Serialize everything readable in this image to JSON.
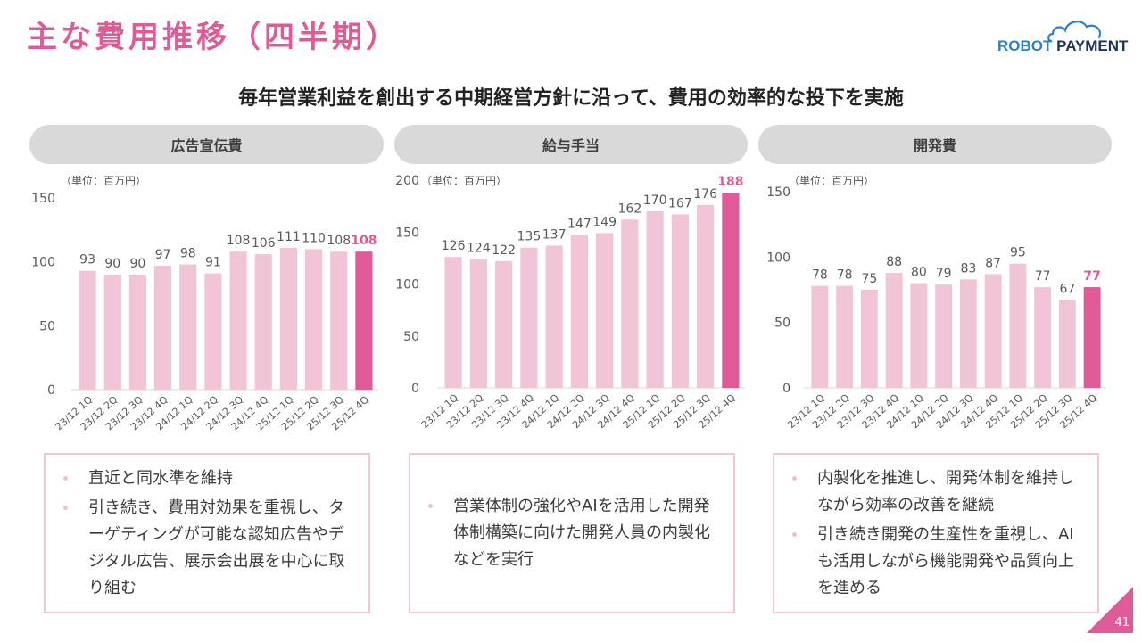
{
  "header": {
    "title": "主な費用推移（四半期）",
    "subtitle": "毎年営業利益を創出する中期経営方針に沿って、費用の効率的な投下を実施"
  },
  "logo": {
    "brand_part1": "ROBOT",
    "brand_part2": "PAYMENT",
    "icon": "cloud-icon"
  },
  "colors": {
    "accent": "#df5a97",
    "bar": "#f2c4d8",
    "bar_highlight": "#df5a97",
    "pill_bg": "#d9d9d9",
    "note_border": "#f0c6d8",
    "logo_blue": "#2d80c3",
    "logo_navy": "#1d3557"
  },
  "chart_data": [
    {
      "type": "bar",
      "title": "広告宣伝費",
      "unit_label": "（単位：百万円）",
      "categories": [
        "23/12 1Q",
        "23/12 2Q",
        "23/12 3Q",
        "23/12 4Q",
        "24/12 1Q",
        "24/12 2Q",
        "24/12 3Q",
        "24/12 4Q",
        "25/12 1Q",
        "25/12 2Q",
        "25/12 3Q",
        "25/12 4Q"
      ],
      "values": [
        93,
        90,
        90,
        97,
        98,
        91,
        108,
        106,
        111,
        110,
        108,
        108
      ],
      "highlight_index": 11,
      "ylim": [
        0,
        150
      ],
      "yticks": [
        0,
        50,
        100,
        150
      ],
      "xlabel": "",
      "ylabel": "",
      "grid": false
    },
    {
      "type": "bar",
      "title": "給与手当",
      "unit_label": "（単位：百万円）",
      "categories": [
        "23/12 1Q",
        "23/12 2Q",
        "23/12 3Q",
        "23/12 4Q",
        "24/12 1Q",
        "24/12 2Q",
        "24/12 3Q",
        "24/12 4Q",
        "25/12 1Q",
        "25/12 2Q",
        "25/12 3Q",
        "25/12 4Q"
      ],
      "values": [
        126,
        124,
        122,
        135,
        137,
        147,
        149,
        162,
        170,
        167,
        176,
        188
      ],
      "highlight_index": 11,
      "ylim": [
        0,
        200
      ],
      "yticks": [
        0,
        50,
        100,
        150,
        200
      ],
      "xlabel": "",
      "ylabel": "",
      "grid": false
    },
    {
      "type": "bar",
      "title": "開発費",
      "unit_label": "（単位：百万円）",
      "categories": [
        "23/12 1Q",
        "23/12 2Q",
        "23/12 3Q",
        "23/12 4Q",
        "24/12 1Q",
        "24/12 2Q",
        "24/12 3Q",
        "24/12 4Q",
        "25/12 1Q",
        "25/12 2Q",
        "25/12 3Q",
        "25/12 4Q"
      ],
      "values": [
        78,
        78,
        75,
        88,
        80,
        79,
        83,
        87,
        95,
        77,
        67,
        77
      ],
      "highlight_index": 11,
      "ylim": [
        0,
        150
      ],
      "yticks": [
        0,
        50,
        100,
        150
      ],
      "xlabel": "",
      "ylabel": "",
      "grid": false
    }
  ],
  "notes": [
    {
      "bullets": [
        "直近と同水準を維持",
        "引き続き、費用対効果を重視し、ターゲティングが可能な認知広告やデジタル広告、展示会出展を中心に取り組む"
      ]
    },
    {
      "bullets": [
        "営業体制の強化やAIを活用した開発体制構築に向けた開発人員の内製化などを実行"
      ]
    },
    {
      "bullets": [
        "内製化を推進し、開発体制を維持しながら効率の改善を継続",
        "引き続き開発の生産性を重視し、AIも活用しながら機能開発や品質向上を進める"
      ]
    }
  ],
  "footer": {
    "page_number": "41"
  }
}
